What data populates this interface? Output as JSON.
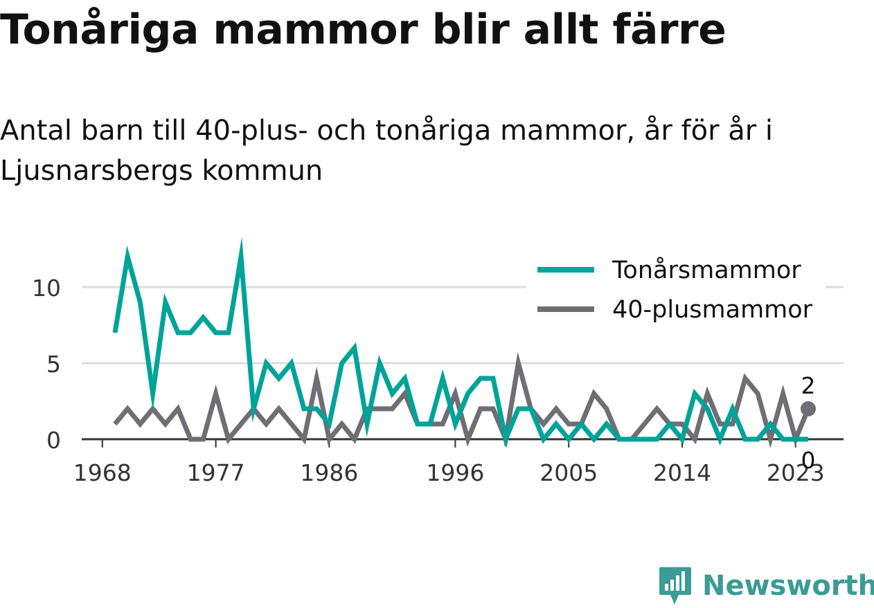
{
  "title": "Tonåriga mammor blir allt färre",
  "subtitle": "Antal barn till 40-plus- och tonåriga mammor, år för år i Ljusnarsbergs kommun",
  "brand": {
    "name": "Newsworthy",
    "logo_icon": "newsworthy-logo-icon",
    "color": "#3a9c94"
  },
  "chart_data": {
    "type": "line",
    "x": [
      1969,
      1970,
      1971,
      1972,
      1973,
      1974,
      1975,
      1976,
      1977,
      1978,
      1979,
      1980,
      1981,
      1982,
      1983,
      1984,
      1985,
      1986,
      1987,
      1988,
      1989,
      1990,
      1991,
      1992,
      1993,
      1994,
      1995,
      1996,
      1997,
      1998,
      1999,
      2000,
      2001,
      2002,
      2003,
      2004,
      2005,
      2006,
      2007,
      2008,
      2009,
      2010,
      2011,
      2012,
      2013,
      2014,
      2015,
      2016,
      2017,
      2018,
      2019,
      2020,
      2021,
      2022,
      2023,
      2024
    ],
    "series": [
      {
        "name": "Tonårsmammor",
        "color": "#00a399",
        "values": [
          7,
          12,
          9,
          3,
          9,
          7,
          7,
          8,
          7,
          7,
          12,
          2,
          5,
          4,
          5,
          2,
          2,
          1,
          5,
          6,
          1,
          5,
          3,
          4,
          1,
          1,
          4,
          1,
          3,
          4,
          4,
          0,
          2,
          2,
          0,
          1,
          0,
          1,
          0,
          1,
          0,
          0,
          0,
          0,
          1,
          0,
          3,
          2,
          0,
          2,
          0,
          0,
          1,
          0,
          0,
          0
        ]
      },
      {
        "name": "40-plusmammor",
        "color": "#6f6e74",
        "values": [
          1,
          2,
          1,
          2,
          1,
          2,
          0,
          0,
          3,
          0,
          1,
          2,
          1,
          2,
          1,
          0,
          4,
          0,
          1,
          0,
          2,
          2,
          2,
          3,
          1,
          1,
          1,
          3,
          0,
          2,
          2,
          0,
          5,
          2,
          1,
          2,
          1,
          1,
          3,
          2,
          0,
          0,
          1,
          2,
          1,
          1,
          0,
          3,
          1,
          1,
          4,
          3,
          0,
          3,
          0,
          2
        ]
      }
    ],
    "xticks": [
      "1968",
      "1977",
      "1986",
      "1996",
      "2005",
      "2014",
      "2023"
    ],
    "yticks": [
      "0",
      "5",
      "10"
    ],
    "ylim": [
      0,
      12
    ],
    "grid": true,
    "legend": "top-right",
    "end_labels": [
      "2",
      "0"
    ]
  }
}
